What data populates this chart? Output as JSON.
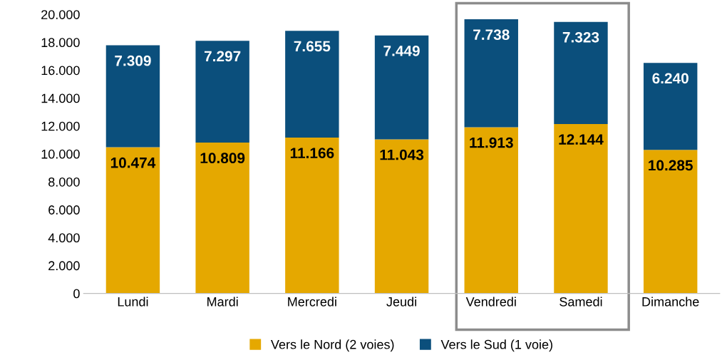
{
  "chart_data": {
    "type": "bar",
    "stacked": true,
    "categories": [
      "Lundi",
      "Mardi",
      "Mercredi",
      "Jeudi",
      "Vendredi",
      "Samedi",
      "Dimanche"
    ],
    "series": [
      {
        "name": "Vers le Nord (2 voies)",
        "color": "#e5a800",
        "values": [
          10474,
          10809,
          11166,
          11043,
          11913,
          12144,
          10285
        ],
        "value_labels": [
          "10.474",
          "10.809",
          "11.166",
          "11.043",
          "11.913",
          "12.144",
          "10.285"
        ]
      },
      {
        "name": "Vers le Sud (1 voie)",
        "color": "#0b4f7c",
        "values": [
          7309,
          7297,
          7655,
          7449,
          7738,
          7323,
          6240
        ],
        "value_labels": [
          "7.309",
          "7.297",
          "7.655",
          "7.449",
          "7.738",
          "7.323",
          "6.240"
        ]
      }
    ],
    "ylim": [
      0,
      20000
    ],
    "yticks": [
      {
        "value": 0,
        "label": "0"
      },
      {
        "value": 2000,
        "label": "2.000"
      },
      {
        "value": 4000,
        "label": "4.000"
      },
      {
        "value": 6000,
        "label": "6.000"
      },
      {
        "value": 8000,
        "label": "8.000"
      },
      {
        "value": 10000,
        "label": "10.000"
      },
      {
        "value": 12000,
        "label": "12.000"
      },
      {
        "value": 14000,
        "label": "14.000"
      },
      {
        "value": 16000,
        "label": "16.000"
      },
      {
        "value": 18000,
        "label": "18.000"
      },
      {
        "value": 20000,
        "label": "20.000"
      }
    ],
    "legend": "bottom",
    "grid": false
  }
}
